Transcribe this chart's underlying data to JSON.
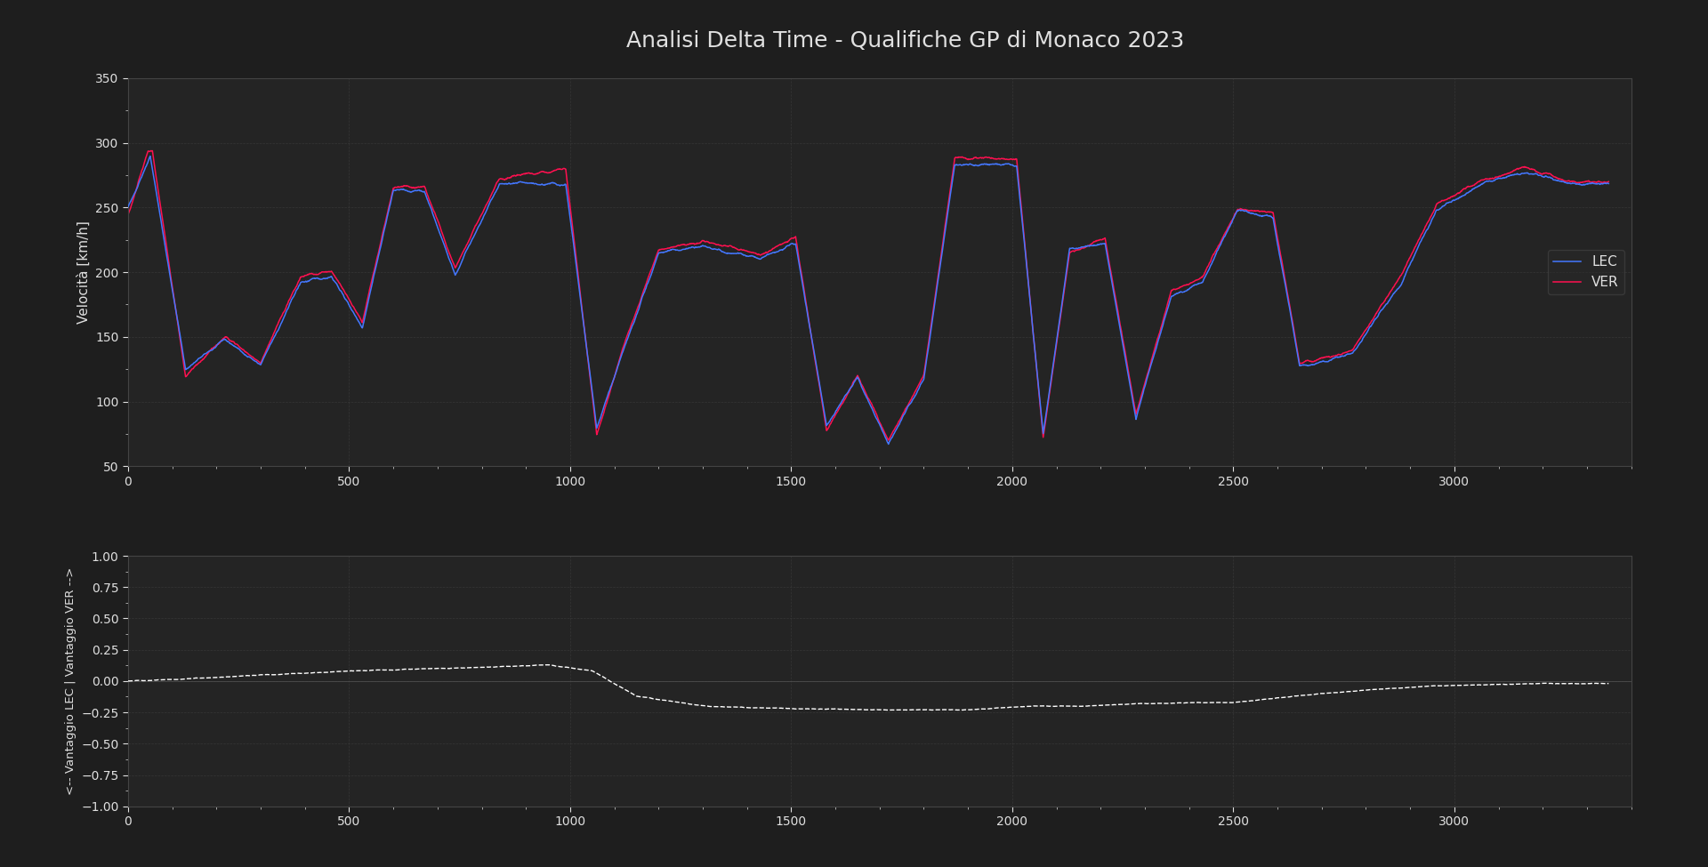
{
  "title": "Analisi Delta Time - Qualifiche GP di Monaco 2023",
  "title_fontsize": 18,
  "background_color": "#1e1e1e",
  "axes_bg_color": "#242424",
  "grid_color": "#3a3a3a",
  "text_color": "#e0e0e0",
  "ver_color": "#4477ff",
  "lec_color": "#ff1050",
  "delta_color": "#ffffff",
  "ylabel_speed": "Velocità [km/h]",
  "ylabel_delta": "<-- Vantaggio LEC | Vantaggio VER -->",
  "ylim_speed": [
    50,
    350
  ],
  "ylim_delta": [
    -1.0,
    1.0
  ],
  "xlim": [
    0,
    3400
  ],
  "legend_labels": [
    "VER",
    "LEC"
  ],
  "yticks_speed": [
    50,
    100,
    150,
    200,
    250,
    300,
    350
  ],
  "yticks_delta": [
    -1.0,
    -0.75,
    -0.5,
    -0.25,
    0.0,
    0.25,
    0.5,
    0.75,
    1.0
  ],
  "xticks": [
    0,
    500,
    1000,
    1500,
    2000,
    2500,
    3000
  ]
}
